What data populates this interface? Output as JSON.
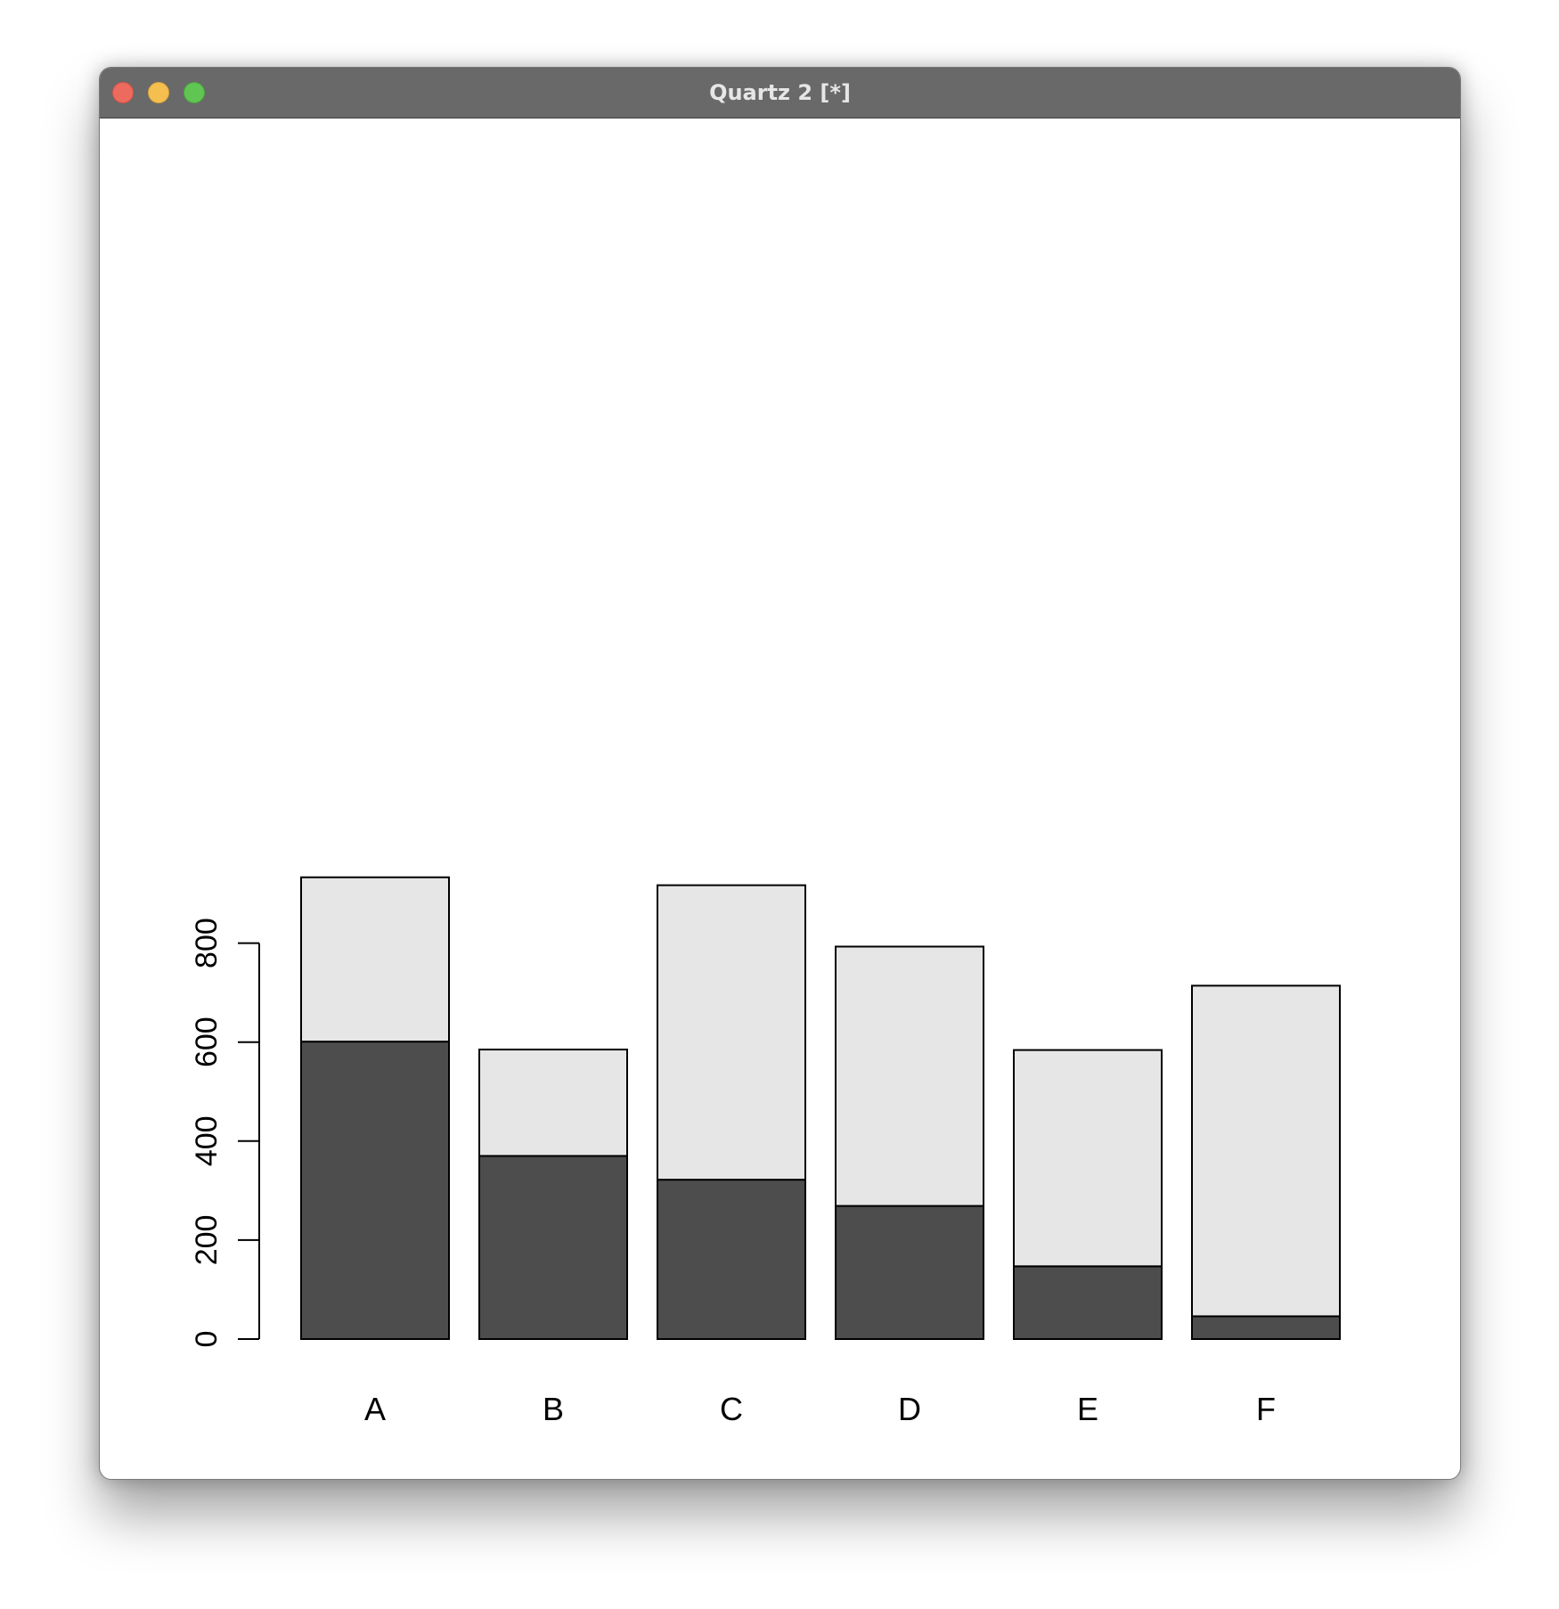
{
  "window": {
    "title": "Quartz 2 [*]",
    "buttons": [
      "close",
      "minimize",
      "maximize"
    ]
  },
  "colors": {
    "bar_bottom": "#4d4d4d",
    "bar_top": "#e6e6e6",
    "stroke": "#000000",
    "titlebar": "#696969"
  },
  "chart_data": {
    "type": "bar",
    "stacked": true,
    "categories": [
      "A",
      "B",
      "C",
      "D",
      "E",
      "F"
    ],
    "series": [
      {
        "values": [
          601,
          370,
          322,
          269,
          147,
          46
        ]
      },
      {
        "values": [
          332,
          215,
          595,
          524,
          437,
          668
        ]
      }
    ],
    "totals": [
      933,
      585,
      917,
      793,
      584,
      714
    ],
    "yticks": [
      0,
      200,
      400,
      600,
      800
    ],
    "ylim": [
      0,
      933
    ],
    "title": "",
    "xlabel": "",
    "ylabel": "",
    "grid": false,
    "legend": "none"
  }
}
